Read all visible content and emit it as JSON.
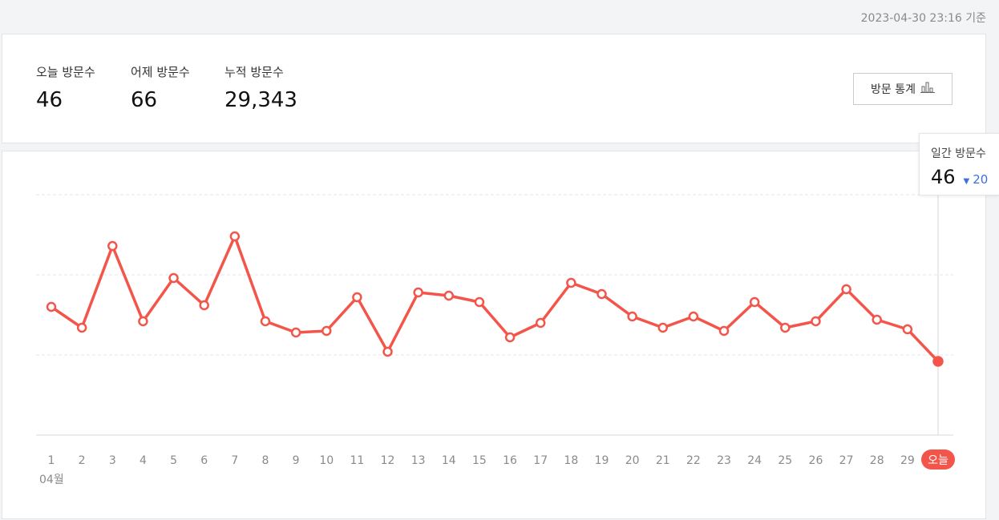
{
  "header": {
    "as_of": "2023-04-30 23:16 기준"
  },
  "summary": {
    "today_label": "오늘 방문수",
    "today_value": "46",
    "yesterday_label": "어제 방문수",
    "yesterday_value": "66",
    "total_label": "누적 방문수",
    "total_value": "29,343",
    "stats_button_label": "방문 통계",
    "stats_button_icon": "bar-chart-icon"
  },
  "tooltip": {
    "label": "일간 방문수",
    "value": "46",
    "delta_arrow": "▼",
    "delta": "20"
  },
  "colors": {
    "line": "#f4554a",
    "today_badge": "#f4554a",
    "delta": "#3d6fe0",
    "grid": "#e3e4e7"
  },
  "chart_data": {
    "type": "line",
    "title": "",
    "month_label": "04월",
    "x": [
      "1",
      "2",
      "3",
      "4",
      "5",
      "6",
      "7",
      "8",
      "9",
      "10",
      "11",
      "12",
      "13",
      "14",
      "15",
      "16",
      "17",
      "18",
      "19",
      "20",
      "21",
      "22",
      "23",
      "24",
      "25",
      "26",
      "27",
      "28",
      "29",
      "오늘"
    ],
    "series": [
      {
        "values": [
          80,
          67,
          118,
          71,
          98,
          81,
          124,
          71,
          64,
          65,
          86,
          52,
          89,
          87,
          83,
          61,
          70,
          95,
          88,
          74,
          67,
          74,
          65,
          83,
          67,
          71,
          91,
          72,
          66,
          46
        ]
      }
    ],
    "ylim": [
      0,
      150
    ],
    "grid": true,
    "show_y_axis_labels": false
  }
}
